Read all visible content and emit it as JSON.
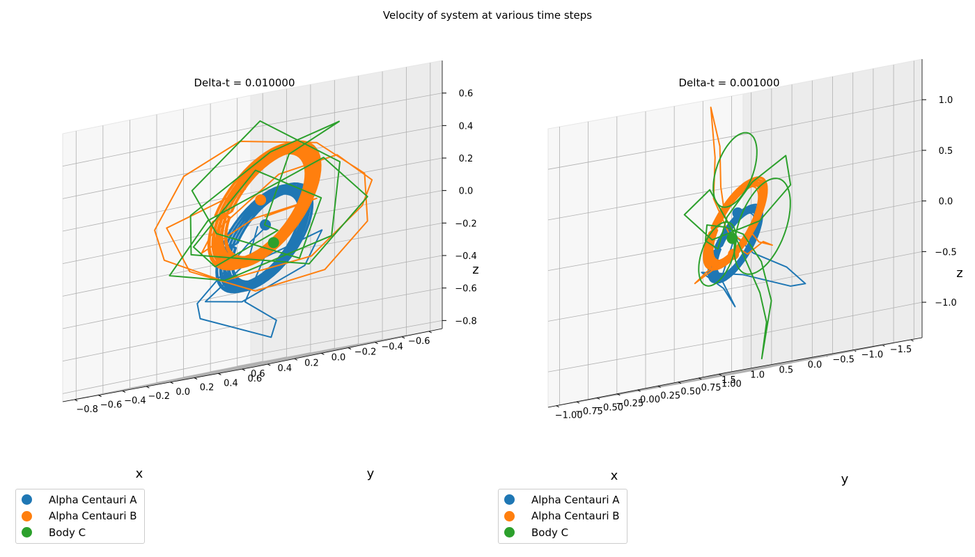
{
  "figure": {
    "suptitle": "Velocity of system at various time steps"
  },
  "colors": {
    "Alpha Centauri A": "#1f77b4",
    "Alpha Centauri B": "#ff7f0e",
    "Body C": "#2ca02c"
  },
  "chart_data": [
    {
      "type": "line3d",
      "title": "Delta-t = 0.010000",
      "xlabel": "x",
      "ylabel": "y",
      "zlabel": "z",
      "xlim": [
        -0.7,
        0.7
      ],
      "ylim": [
        -0.9,
        0.7
      ],
      "zlim": [
        -0.85,
        0.8
      ],
      "xticks": [
        -0.6,
        -0.4,
        -0.2,
        0.0,
        0.2,
        0.4,
        0.6
      ],
      "xtick_labels": [
        "−0.6",
        "−0.4",
        "−0.2",
        "0.0",
        "0.2",
        "0.4",
        "0.6"
      ],
      "yticks": [
        -0.8,
        -0.6,
        -0.4,
        -0.2,
        0.0,
        0.2,
        0.4,
        0.6
      ],
      "ytick_labels": [
        "−0.8",
        "−0.6",
        "−0.4",
        "−0.2",
        "0.0",
        "0.2",
        "0.4",
        "0.6"
      ],
      "zticks": [
        -0.8,
        -0.6,
        -0.4,
        -0.2,
        0.0,
        0.2,
        0.4,
        0.6
      ],
      "ztick_labels": [
        "−0.8",
        "−0.6",
        "−0.4",
        "−0.2",
        "0.0",
        "0.2",
        "0.4",
        "0.6"
      ],
      "grid": true,
      "legend": [
        "Alpha Centauri A",
        "Alpha Centauri B",
        "Body C"
      ],
      "legend_position": "lower-left",
      "series": [
        {
          "name": "Alpha Centauri A",
          "ring": {
            "radius": 0.28,
            "turns": 34,
            "jitter": 0.06
          },
          "x": [
            0.05,
            0.3,
            0.35,
            -0.1,
            -0.3,
            -0.25,
            0.0,
            0.1,
            0.0,
            -0.05,
            0.3,
            0.5,
            0.4,
            0.15
          ],
          "y": [
            0.0,
            0.2,
            -0.1,
            -0.3,
            0.0,
            0.2,
            0.0,
            -0.05,
            0.1,
            0.0,
            -0.2,
            0.0,
            0.3,
            0.2
          ],
          "z": [
            0.0,
            -0.2,
            -0.4,
            -0.45,
            -0.3,
            -0.1,
            -0.2,
            -0.45,
            -0.6,
            -0.7,
            -0.5,
            -0.4,
            -0.1,
            0.0
          ],
          "marker": [
            0.02,
            0.03,
            0.0
          ]
        },
        {
          "name": "Alpha Centauri B",
          "ring": {
            "radius": 0.33,
            "turns": 34,
            "jitter": 0.07
          },
          "x": [
            0.3,
            0.5,
            0.55,
            0.2,
            -0.2,
            -0.45,
            -0.5,
            -0.3,
            0.1,
            0.45,
            0.6,
            0.55,
            0.3,
            -0.05,
            -0.35,
            -0.55,
            -0.4,
            -0.05,
            0.25,
            0.4,
            0.2,
            -0.1,
            -0.3,
            0.0
          ],
          "y": [
            0.2,
            0.4,
            -0.2,
            -0.4,
            -0.3,
            0.0,
            0.3,
            0.5,
            0.55,
            0.3,
            0.0,
            -0.3,
            -0.5,
            -0.4,
            0.0,
            0.2,
            0.45,
            0.55,
            0.4,
            0.0,
            -0.3,
            -0.2,
            0.1,
            0.0
          ],
          "z": [
            0.3,
            0.25,
            0.1,
            -0.2,
            -0.4,
            -0.35,
            -0.1,
            0.2,
            0.45,
            0.55,
            0.4,
            0.1,
            -0.1,
            -0.3,
            -0.25,
            0.0,
            0.15,
            0.35,
            0.3,
            0.0,
            -0.1,
            0.05,
            0.1,
            0.05
          ],
          "marker": [
            0.1,
            0.08,
            0.16
          ]
        },
        {
          "name": "Body C",
          "x": [
            0.0,
            -0.45,
            -0.2,
            0.4,
            0.55,
            0.1,
            -0.6,
            -0.5,
            0.05,
            0.6,
            0.35,
            -0.15,
            -0.5,
            -0.25,
            0.3,
            0.45,
            0.0,
            -0.35,
            -0.2,
            0.2,
            0.35,
            0.1,
            -0.1,
            0.0
          ],
          "y": [
            0.0,
            -0.3,
            0.4,
            0.5,
            0.0,
            -0.5,
            -0.3,
            0.3,
            0.55,
            0.2,
            -0.4,
            -0.5,
            0.0,
            0.35,
            0.3,
            -0.1,
            -0.4,
            -0.1,
            0.25,
            0.15,
            -0.2,
            -0.3,
            0.0,
            0.0
          ],
          "z": [
            0.0,
            0.4,
            0.55,
            0.45,
            0.15,
            -0.1,
            -0.3,
            0.05,
            0.35,
            0.1,
            -0.2,
            -0.3,
            -0.15,
            0.3,
            0.65,
            0.3,
            0.0,
            -0.25,
            0.1,
            0.35,
            -0.05,
            -0.2,
            -0.05,
            0.0
          ],
          "marker": [
            -0.05,
            0.02,
            -0.12
          ]
        }
      ]
    },
    {
      "type": "line3d",
      "title": "Delta-t = 0.001000",
      "xlabel": "x",
      "ylabel": "y",
      "zlabel": "z",
      "xlim": [
        -1.7,
        1.7
      ],
      "ylim": [
        -1.1,
        1.1
      ],
      "zlim": [
        -1.35,
        1.4
      ],
      "xticks": [
        -1.5,
        -1.0,
        -0.5,
        0.0,
        0.5,
        1.0,
        1.5
      ],
      "xtick_labels": [
        "−1.5",
        "−1.0",
        "−0.5",
        "0.0",
        "0.5",
        "1.0",
        "1.5"
      ],
      "yticks": [
        -1.0,
        -0.75,
        -0.5,
        -0.25,
        0.0,
        0.25,
        0.5,
        0.75,
        1.0
      ],
      "ytick_labels": [
        "−1.00",
        "−0.75",
        "−0.50",
        "−0.25",
        "0.00",
        "0.25",
        "0.50",
        "0.75",
        "1.00"
      ],
      "zticks": [
        -1.0,
        -0.5,
        0.0,
        0.5,
        1.0
      ],
      "ztick_labels": [
        "−1.0",
        "−0.5",
        "0.0",
        "0.5",
        "1.0"
      ],
      "grid": true,
      "legend": [
        "Alpha Centauri A",
        "Alpha Centauri B",
        "Body C"
      ],
      "legend_position": "lower-left",
      "series": [
        {
          "name": "Alpha Centauri A",
          "ring": {
            "radius": 0.32,
            "turns": 22,
            "jitter": 0.08
          },
          "x": [
            0.0,
            -0.6,
            -0.9,
            -0.8,
            -0.4,
            0.0,
            0.3,
            0.2,
            0.0,
            0.1,
            0.0
          ],
          "y": [
            0.0,
            -0.2,
            0.0,
            0.3,
            0.4,
            0.1,
            -0.2,
            0.0,
            0.0,
            -0.1,
            0.0
          ],
          "z": [
            0.0,
            -0.2,
            -0.4,
            -0.6,
            -0.6,
            -0.4,
            -0.3,
            -0.5,
            -0.7,
            -0.4,
            0.0
          ],
          "marker": [
            -0.02,
            0.02,
            0.22
          ]
        },
        {
          "name": "Alpha Centauri B",
          "ring": {
            "radius": 0.38,
            "turns": 22,
            "jitter": 0.09
          },
          "x": [
            0.0,
            0.6,
            1.1,
            1.4,
            1.7,
            1.2,
            0.8,
            0.3,
            0.0,
            -0.5,
            -1.2,
            -1.5,
            -0.7,
            0.0,
            0.5,
            0.7,
            0.2,
            -0.2,
            0.0
          ],
          "y": [
            0.0,
            0.3,
            0.6,
            0.8,
            0.9,
            0.6,
            0.3,
            0.1,
            0.0,
            -0.2,
            -0.5,
            -0.6,
            -0.2,
            0.2,
            0.3,
            0.0,
            -0.2,
            0.0,
            0.0
          ],
          "z": [
            0.0,
            0.2,
            0.5,
            0.9,
            1.3,
            0.8,
            0.4,
            0.1,
            -0.1,
            -0.2,
            -0.1,
            -0.15,
            -0.1,
            0.0,
            -0.2,
            -0.4,
            -0.3,
            -0.1,
            0.0
          ],
          "marker": [
            0.0,
            -0.02,
            -0.18
          ]
        },
        {
          "name": "Body C",
          "x": [
            0.0,
            -0.5,
            -1.0,
            -1.4,
            -1.6,
            -1.2,
            -0.6,
            0.0,
            0.6,
            1.2,
            0.8,
            0.3,
            0.0,
            -0.3,
            -0.6,
            -0.4,
            0.0,
            0.4,
            0.6,
            0.3,
            0.0
          ],
          "y": [
            0.0,
            -0.2,
            -0.4,
            -0.6,
            -0.8,
            -0.4,
            -0.1,
            0.1,
            0.3,
            0.5,
            0.2,
            0.0,
            -0.1,
            0.0,
            0.2,
            0.4,
            0.3,
            0.0,
            -0.2,
            -0.1,
            0.0
          ],
          "z": [
            0.0,
            -0.3,
            -0.6,
            -0.9,
            -1.25,
            -0.7,
            -0.3,
            0.0,
            0.1,
            0.15,
            0.0,
            -0.1,
            0.2,
            0.5,
            0.7,
            0.4,
            0.1,
            0.0,
            0.3,
            0.5,
            0.0
          ],
          "loops": [
            {
              "c": [
                -0.9,
                -0.3,
                0.05
              ],
              "r": 0.45
            },
            {
              "c": [
                0.0,
                0.0,
                0.65
              ],
              "r": 0.35
            },
            {
              "c": [
                0.45,
                0.1,
                -0.15
              ],
              "r": 0.3
            }
          ],
          "marker": [
            0.05,
            0.0,
            -0.02
          ]
        }
      ]
    }
  ]
}
